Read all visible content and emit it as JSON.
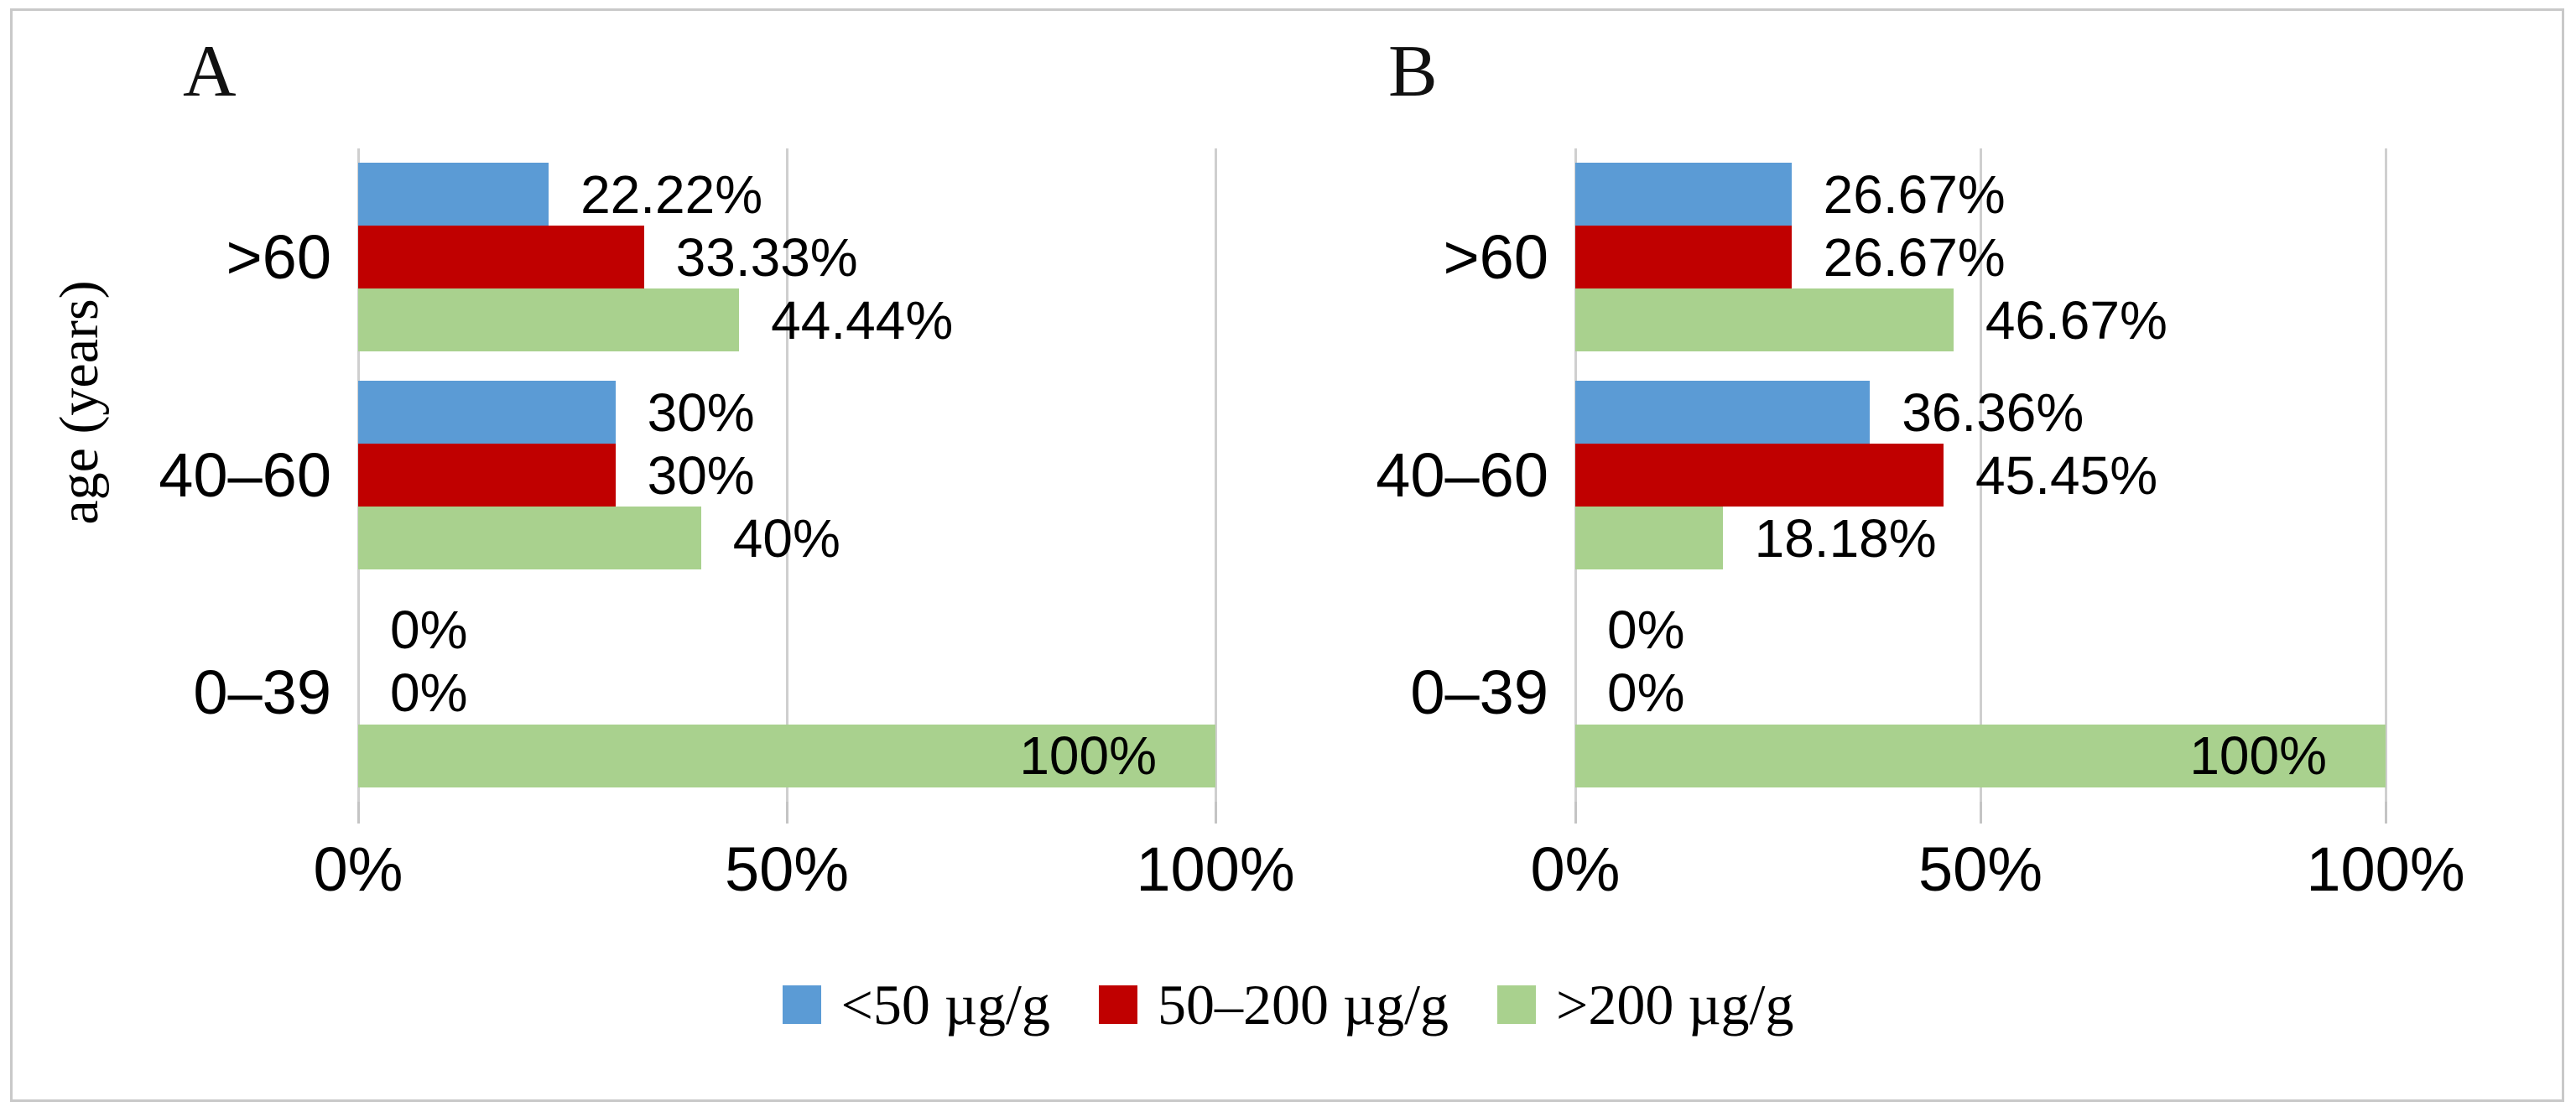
{
  "figure": {
    "y_axis_label": "age (years)",
    "x_ticks": [
      "0%",
      "50%",
      "100%"
    ],
    "legend": [
      {
        "label": "<50 µg/g",
        "color": "#5B9BD5"
      },
      {
        "label": "50–200 µg/g",
        "color": "#C00000"
      },
      {
        "label": ">200 µg/g",
        "color": "#A9D18E"
      }
    ],
    "colors": {
      "blue": "#5B9BD5",
      "red": "#C00000",
      "green": "#A9D18E",
      "gridline": "#cfcfcf",
      "frame_border": "#c9c9c9"
    }
  },
  "chart_data": [
    {
      "type": "bar",
      "orientation": "horizontal",
      "panel_label": "A",
      "categories": [
        ">60",
        "40–60",
        "0–39"
      ],
      "series": [
        {
          "name": "<50 µg/g",
          "color": "#5B9BD5",
          "values": [
            22.22,
            30,
            0
          ],
          "labels": [
            "22.22%",
            "30%",
            "0%"
          ]
        },
        {
          "name": "50–200 µg/g",
          "color": "#C00000",
          "values": [
            33.33,
            30,
            0
          ],
          "labels": [
            "33.33%",
            "30%",
            "0%"
          ]
        },
        {
          "name": ">200 µg/g",
          "color": "#A9D18E",
          "values": [
            44.44,
            40,
            100
          ],
          "labels": [
            "44.44%",
            "40%",
            "100%"
          ]
        }
      ],
      "xlim": [
        0,
        100
      ],
      "x_tick_labels": [
        "0%",
        "50%",
        "100%"
      ],
      "ylabel": "age (years)",
      "grid": true,
      "legend_position": "bottom"
    },
    {
      "type": "bar",
      "orientation": "horizontal",
      "panel_label": "B",
      "categories": [
        ">60",
        "40–60",
        "0–39"
      ],
      "series": [
        {
          "name": "<50 µg/g",
          "color": "#5B9BD5",
          "values": [
            26.67,
            36.36,
            0
          ],
          "labels": [
            "26.67%",
            "36.36%",
            "0%"
          ]
        },
        {
          "name": "50–200 µg/g",
          "color": "#C00000",
          "values": [
            26.67,
            45.45,
            0
          ],
          "labels": [
            "26.67%",
            "45.45%",
            "0%"
          ]
        },
        {
          "name": ">200 µg/g",
          "color": "#A9D18E",
          "values": [
            46.67,
            18.18,
            100
          ],
          "labels": [
            "46.67%",
            "18.18%",
            "100%"
          ]
        }
      ],
      "xlim": [
        0,
        100
      ],
      "x_tick_labels": [
        "0%",
        "50%",
        "100%"
      ],
      "grid": true,
      "legend_position": "bottom"
    }
  ]
}
